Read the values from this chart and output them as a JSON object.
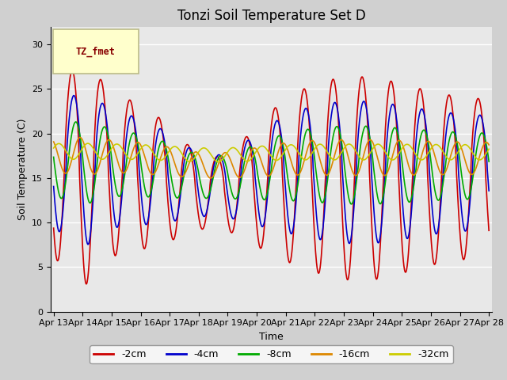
{
  "title": "Tonzi Soil Temperature Set D",
  "xlabel": "Time",
  "ylabel": "Soil Temperature (C)",
  "legend_label": "TZ_fmet",
  "series_labels": [
    "-2cm",
    "-4cm",
    "-8cm",
    "-16cm",
    "-32cm"
  ],
  "series_colors": [
    "#cc0000",
    "#0000cc",
    "#00aa00",
    "#dd8800",
    "#cccc00"
  ],
  "ylim": [
    0,
    32
  ],
  "yticks": [
    0,
    5,
    10,
    15,
    20,
    25,
    30
  ],
  "bg_color": "#e8e8e8",
  "title_fontsize": 12,
  "axis_fontsize": 9,
  "tick_fontsize": 8,
  "line_width": 1.2,
  "n_days": 15,
  "n_points": 1440
}
